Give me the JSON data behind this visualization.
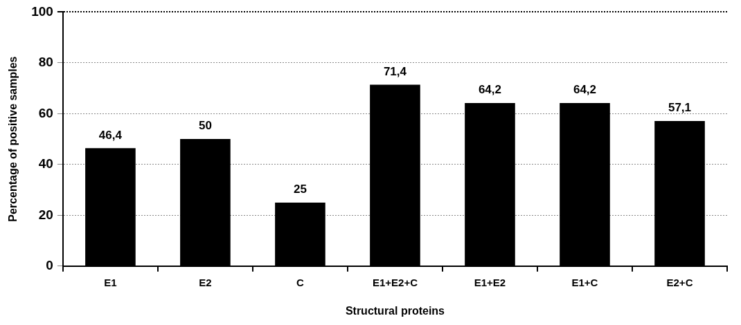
{
  "chart_data": {
    "type": "bar",
    "xlabel": "Structural proteins",
    "ylabel": "Percentage of positive samples",
    "categories": [
      "E1",
      "E2",
      "C",
      "E1+E2+C",
      "E1+E2",
      "E1+C",
      "E2+C"
    ],
    "values": [
      46.4,
      50,
      25,
      71.4,
      64.2,
      64.2,
      57.1
    ],
    "value_labels": [
      "46,4",
      "50",
      "25",
      "71,4",
      "64,2",
      "64,2",
      "57,1"
    ],
    "color": "#000000",
    "ylim": [
      0,
      100
    ],
    "yticks": [
      0,
      20,
      40,
      60,
      80,
      100
    ],
    "grid": "y",
    "legend": false
  }
}
